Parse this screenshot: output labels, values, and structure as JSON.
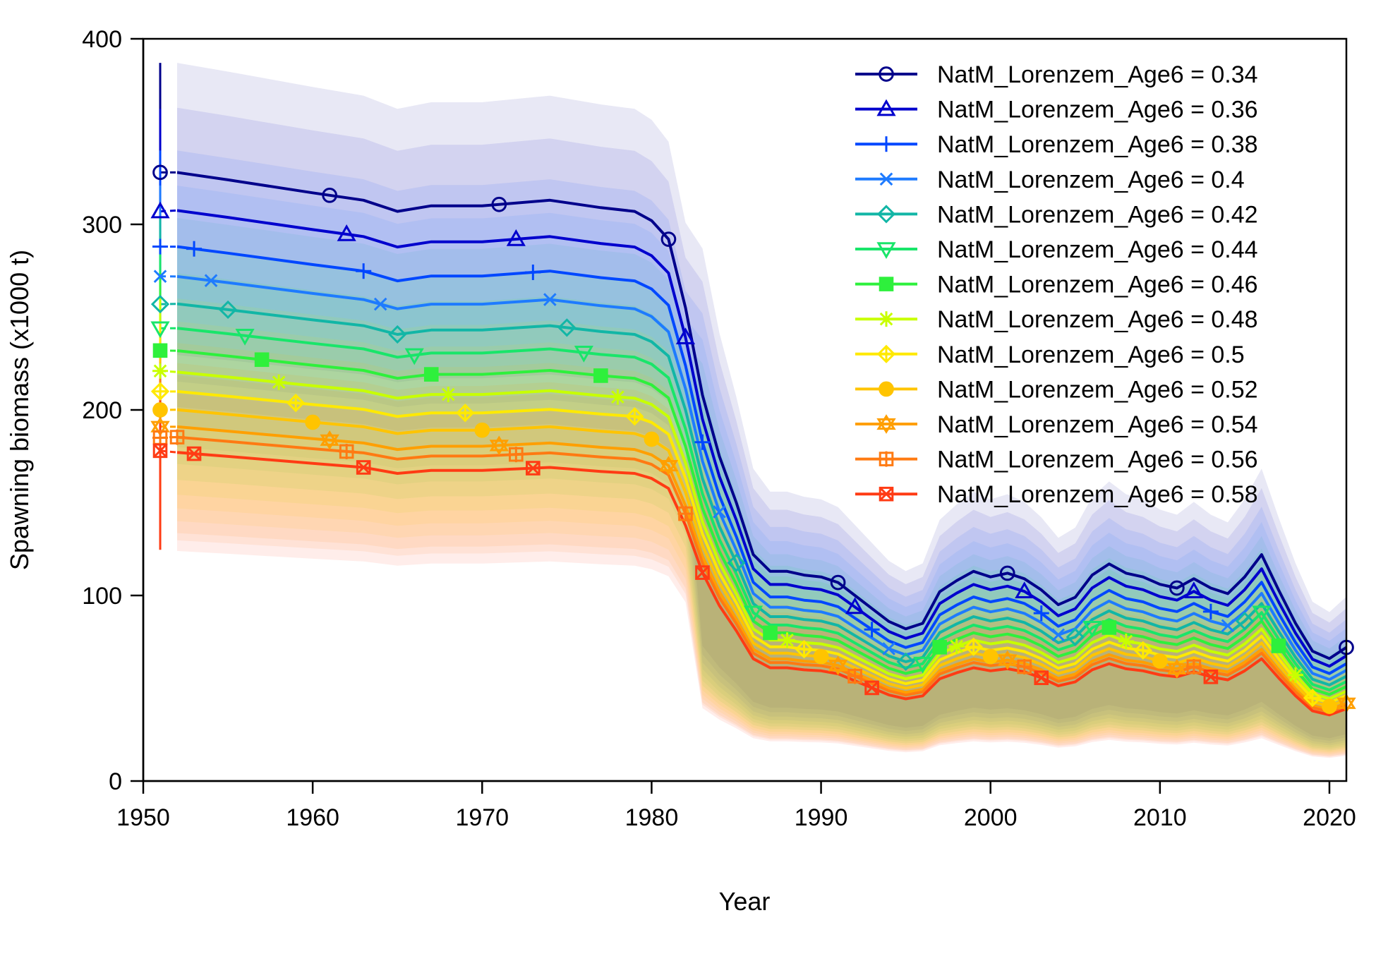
{
  "chart_data": {
    "type": "line",
    "xlabel": "Year",
    "ylabel": "Spawning biomass (x1000 t)",
    "xlim": [
      1950,
      2021
    ],
    "ylim": [
      0,
      400
    ],
    "x_ticks": [
      1950,
      1960,
      1970,
      1980,
      1990,
      2000,
      2010,
      2020
    ],
    "y_ticks": [
      0,
      100,
      200,
      300,
      400
    ],
    "grid": false,
    "legend_position": "top-right",
    "shaded_intervals": true,
    "x": [
      1952,
      1955,
      1960,
      1963,
      1965,
      1967,
      1970,
      1974,
      1977,
      1979,
      1980,
      1981,
      1982,
      1983,
      1984,
      1985,
      1986,
      1987,
      1988,
      1989,
      1990,
      1991,
      1992,
      1993,
      1994,
      1995,
      1996,
      1997,
      1998,
      1999,
      2000,
      2001,
      2002,
      2003,
      2004,
      2005,
      2006,
      2007,
      2008,
      2009,
      2010,
      2011,
      2012,
      2013,
      2014,
      2015,
      2016,
      2017,
      2018,
      2019,
      2020,
      2021
    ],
    "base_shape": [
      328,
      324,
      317,
      313,
      307,
      310,
      310,
      313,
      309,
      307,
      302,
      292,
      255,
      208,
      175,
      150,
      122,
      113,
      113,
      111,
      110,
      107,
      100,
      93,
      86,
      82,
      85,
      102,
      108,
      113,
      110,
      112,
      109,
      103,
      95,
      99,
      111,
      117,
      112,
      110,
      106,
      104,
      109,
      104,
      101,
      110,
      122,
      103,
      85,
      70,
      66,
      72
    ],
    "series": [
      {
        "name": "NatM_Lorenzem_Age6 = 0.34",
        "scale": 1.0,
        "color": "#00008b",
        "marker": "circle",
        "initial": 328
      },
      {
        "name": "NatM_Lorenzem_Age6 = 0.36",
        "scale": 0.9375,
        "color": "#0000cd",
        "marker": "triangle",
        "initial": 307
      },
      {
        "name": "NatM_Lorenzem_Age6 = 0.38",
        "scale": 0.878,
        "color": "#0047ff",
        "marker": "plus",
        "initial": 288
      },
      {
        "name": "NatM_Lorenzem_Age6 = 0.4",
        "scale": 0.829,
        "color": "#1e7bff",
        "marker": "x",
        "initial": 272
      },
      {
        "name": "NatM_Lorenzem_Age6 = 0.42",
        "scale": 0.784,
        "color": "#12b6a6",
        "marker": "diamond",
        "initial": 257
      },
      {
        "name": "NatM_Lorenzem_Age6 = 0.44",
        "scale": 0.744,
        "color": "#19e56a",
        "marker": "triangle-down",
        "initial": 244
      },
      {
        "name": "NatM_Lorenzem_Age6 = 0.46",
        "scale": 0.707,
        "color": "#2ef03c",
        "marker": "square",
        "initial": 232
      },
      {
        "name": "NatM_Lorenzem_Age6 = 0.48",
        "scale": 0.672,
        "color": "#c8ff00",
        "marker": "asterisk",
        "initial": 221
      },
      {
        "name": "NatM_Lorenzem_Age6 = 0.5",
        "scale": 0.64,
        "color": "#ffe900",
        "marker": "diamond-plus",
        "initial": 210
      },
      {
        "name": "NatM_Lorenzem_Age6 = 0.52",
        "scale": 0.61,
        "color": "#ffc400",
        "marker": "circle-plus",
        "initial": 200
      },
      {
        "name": "NatM_Lorenzem_Age6 = 0.54",
        "scale": 0.582,
        "color": "#ff9f00",
        "marker": "star",
        "initial": 191
      },
      {
        "name": "NatM_Lorenzem_Age6 = 0.56",
        "scale": 0.565,
        "color": "#ff7a12",
        "marker": "square-plus",
        "initial": 185
      },
      {
        "name": "NatM_Lorenzem_Age6 = 0.58",
        "scale": 0.54,
        "color": "#ff3b14",
        "marker": "square-x",
        "initial": 178
      }
    ],
    "marker_years": [
      [
        1961,
        1971,
        1981,
        1991,
        2001,
        2011,
        2021
      ],
      [
        1962,
        1972,
        1982,
        1992,
        2002,
        2012
      ],
      [
        1953,
        1963,
        1973,
        1983,
        1993,
        2003,
        2013
      ],
      [
        1954,
        1964,
        1974,
        1984,
        1994,
        2004,
        2014
      ],
      [
        1955,
        1965,
        1975,
        1985,
        1995,
        2005,
        2015
      ],
      [
        1956,
        1966,
        1976,
        1986,
        1996,
        2006,
        2016
      ],
      [
        1957,
        1967,
        1977,
        1987,
        1997,
        2007,
        2017
      ],
      [
        1958,
        1968,
        1978,
        1988,
        1998,
        2008,
        2018
      ],
      [
        1959,
        1969,
        1979,
        1989,
        1999,
        2009,
        2019
      ],
      [
        1960,
        1970,
        1980,
        1990,
        2000,
        2010,
        2020
      ],
      [
        1961,
        1971,
        1981,
        1991,
        2001,
        2011,
        2021
      ],
      [
        1952,
        1962,
        1972,
        1982,
        1992,
        2002,
        2012
      ],
      [
        1953,
        1963,
        1973,
        1983,
        1993,
        2003,
        2013
      ]
    ]
  }
}
